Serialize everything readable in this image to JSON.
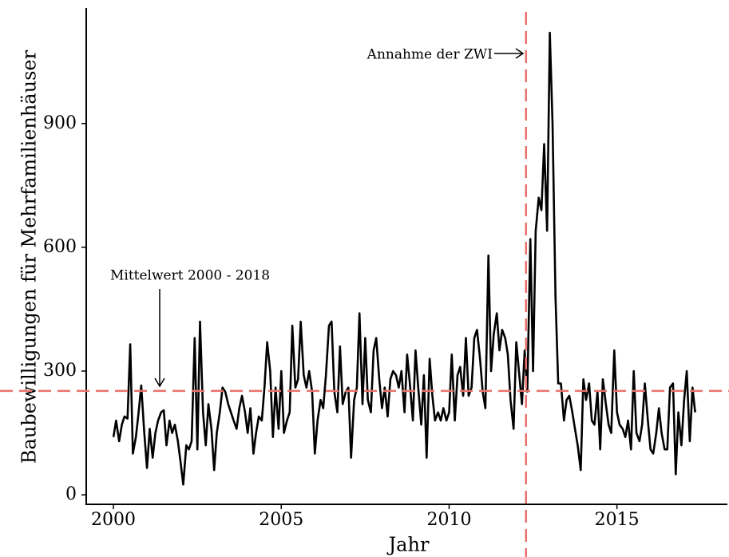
{
  "chart_data": {
    "type": "line",
    "x_label": "Jahr",
    "y_label": "Baubewilligungen für Mehrfamilienhäuser",
    "x": [
      2000,
      2000.08,
      2000.17,
      2000.25,
      2000.33,
      2000.42,
      2000.5,
      2000.58,
      2000.67,
      2000.75,
      2000.83,
      2000.92,
      2001,
      2001.08,
      2001.17,
      2001.25,
      2001.33,
      2001.42,
      2001.5,
      2001.58,
      2001.67,
      2001.75,
      2001.83,
      2001.92,
      2002,
      2002.08,
      2002.17,
      2002.25,
      2002.33,
      2002.42,
      2002.5,
      2002.58,
      2002.67,
      2002.75,
      2002.83,
      2002.92,
      2003,
      2003.08,
      2003.17,
      2003.25,
      2003.33,
      2003.42,
      2003.5,
      2003.58,
      2003.67,
      2003.75,
      2003.83,
      2003.92,
      2004,
      2004.08,
      2004.17,
      2004.25,
      2004.33,
      2004.42,
      2004.5,
      2004.58,
      2004.67,
      2004.75,
      2004.83,
      2004.92,
      2005,
      2005.08,
      2005.17,
      2005.25,
      2005.33,
      2005.42,
      2005.5,
      2005.58,
      2005.67,
      2005.75,
      2005.83,
      2005.92,
      2006,
      2006.08,
      2006.17,
      2006.25,
      2006.33,
      2006.42,
      2006.5,
      2006.58,
      2006.67,
      2006.75,
      2006.83,
      2006.92,
      2007,
      2007.08,
      2007.17,
      2007.25,
      2007.33,
      2007.42,
      2007.5,
      2007.58,
      2007.67,
      2007.75,
      2007.83,
      2007.92,
      2008,
      2008.08,
      2008.17,
      2008.25,
      2008.33,
      2008.42,
      2008.5,
      2008.58,
      2008.67,
      2008.75,
      2008.83,
      2008.92,
      2009,
      2009.08,
      2009.17,
      2009.25,
      2009.33,
      2009.42,
      2009.5,
      2009.58,
      2009.67,
      2009.75,
      2009.83,
      2009.92,
      2010,
      2010.08,
      2010.17,
      2010.25,
      2010.33,
      2010.42,
      2010.5,
      2010.58,
      2010.67,
      2010.75,
      2010.83,
      2010.92,
      2011,
      2011.08,
      2011.17,
      2011.25,
      2011.33,
      2011.42,
      2011.5,
      2011.58,
      2011.67,
      2011.75,
      2011.83,
      2011.92,
      2012,
      2012.08,
      2012.17,
      2012.25,
      2012.33,
      2012.42,
      2012.5,
      2012.58,
      2012.67,
      2012.75,
      2012.83,
      2012.92,
      2013,
      2013.08,
      2013.17,
      2013.25,
      2013.33,
      2013.42,
      2013.5,
      2013.58,
      2013.67,
      2013.75,
      2013.83,
      2013.92,
      2014,
      2014.08,
      2014.17,
      2014.25,
      2014.33,
      2014.42,
      2014.5,
      2014.58,
      2014.67,
      2014.75,
      2014.83,
      2014.92,
      2015,
      2015.08,
      2015.17,
      2015.25,
      2015.33,
      2015.42,
      2015.5,
      2015.58,
      2015.67,
      2015.75,
      2015.83,
      2015.92,
      2016,
      2016.08,
      2016.17,
      2016.25,
      2016.33,
      2016.42,
      2016.5,
      2016.58,
      2016.67,
      2016.75,
      2016.83,
      2016.92,
      2017,
      2017.08,
      2017.17,
      2017.25,
      2017.33
    ],
    "series": [
      {
        "color": "#000000",
        "values": [
          140,
          180,
          130,
          170,
          190,
          185,
          365,
          100,
          140,
          200,
          265,
          150,
          65,
          160,
          90,
          150,
          180,
          200,
          205,
          120,
          180,
          150,
          170,
          130,
          80,
          25,
          120,
          110,
          130,
          380,
          110,
          420,
          200,
          120,
          220,
          160,
          60,
          150,
          200,
          260,
          250,
          220,
          200,
          180,
          160,
          210,
          240,
          200,
          150,
          210,
          100,
          150,
          190,
          180,
          260,
          370,
          300,
          140,
          260,
          160,
          300,
          150,
          180,
          200,
          410,
          260,
          280,
          420,
          290,
          260,
          300,
          250,
          100,
          180,
          230,
          210,
          290,
          410,
          420,
          250,
          200,
          360,
          220,
          250,
          260,
          90,
          230,
          260,
          440,
          220,
          380,
          230,
          200,
          350,
          380,
          280,
          210,
          260,
          190,
          280,
          300,
          290,
          260,
          300,
          200,
          340,
          270,
          180,
          350,
          260,
          170,
          290,
          90,
          330,
          240,
          180,
          200,
          180,
          210,
          180,
          200,
          340,
          180,
          290,
          310,
          240,
          380,
          240,
          260,
          380,
          400,
          330,
          250,
          210,
          580,
          300,
          390,
          440,
          350,
          400,
          380,
          340,
          230,
          160,
          370,
          300,
          220,
          350,
          250,
          620,
          300,
          640,
          720,
          690,
          850,
          640,
          1120,
          900,
          480,
          270,
          270,
          180,
          230,
          240,
          200,
          160,
          120,
          60,
          280,
          230,
          270,
          180,
          170,
          250,
          110,
          280,
          220,
          170,
          150,
          350,
          200,
          170,
          160,
          140,
          180,
          110,
          300,
          150,
          130,
          170,
          270,
          180,
          110,
          100,
          150,
          210,
          150,
          110,
          110,
          260,
          270,
          50,
          200,
          120,
          230,
          300,
          130,
          260,
          200
        ]
      }
    ],
    "hline": 252,
    "vline": 2012.29,
    "ref_color": "#e8736c",
    "annotations": [
      "Annahme der ZWI",
      "Mittelwert 2000 - 2018"
    ],
    "xlim": [
      1999.19,
      2018.29
    ],
    "xticks": [
      2000,
      2005,
      2010,
      2015
    ],
    "ylim": [
      -23,
      1180
    ],
    "yticks": [
      0,
      300,
      600,
      900
    ],
    "grid": false
  }
}
